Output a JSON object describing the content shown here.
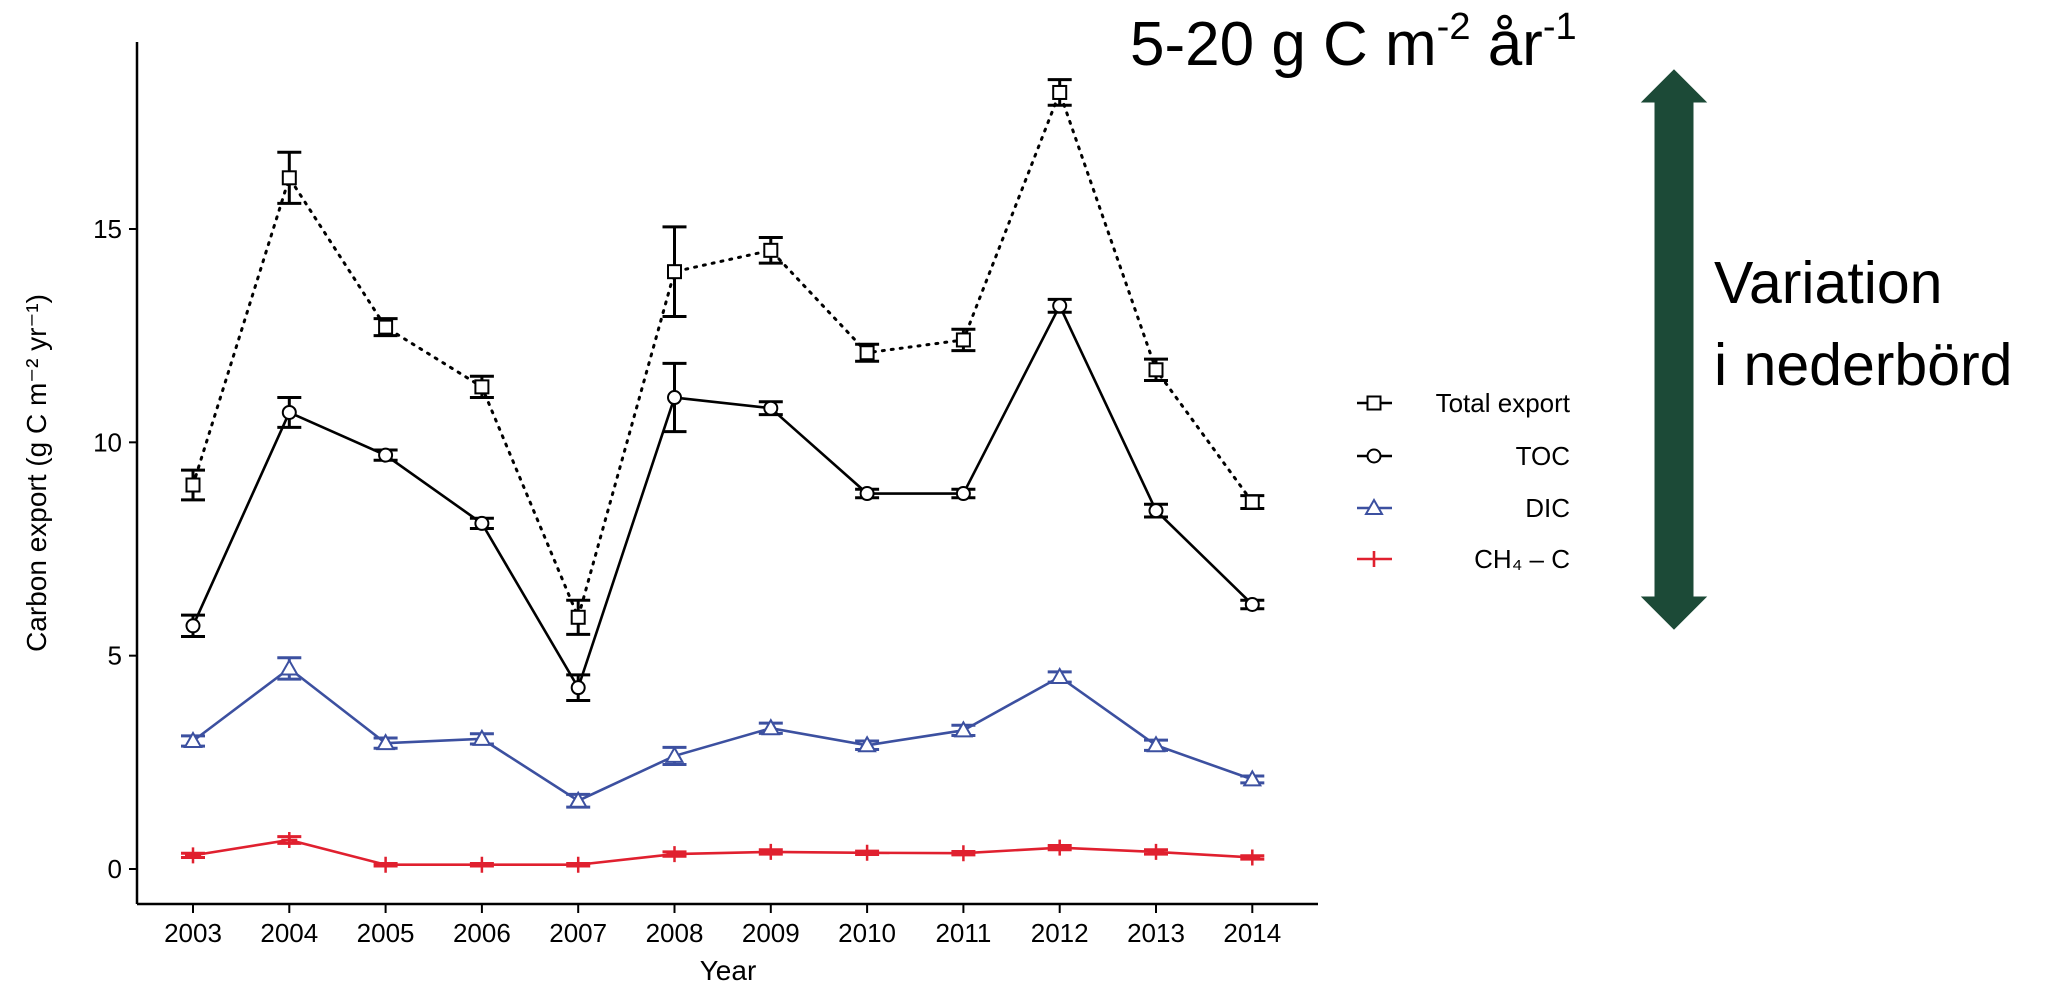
{
  "headline": {
    "base": "5-20 g C m",
    "exp1": "-2",
    "mid": " år",
    "exp2": "-1"
  },
  "annotation": {
    "line1": "Variation",
    "line2": "i nederbörd",
    "arrow_color": "#1c4a37"
  },
  "chart_data": {
    "type": "line",
    "xlabel": "Year",
    "ylabel": "Carbon export (g C m⁻² yr⁻¹)",
    "ylim": [
      -0.8,
      19.5
    ],
    "yticks": [
      0,
      5,
      10,
      15
    ],
    "x": [
      "2003",
      "2004",
      "2005",
      "2006",
      "2007",
      "2008",
      "2009",
      "2010",
      "2011",
      "2012",
      "2013",
      "2014"
    ],
    "legend_position": "right",
    "series": [
      {
        "name": "Total export",
        "marker": "square",
        "style": "dotted",
        "color": "#000000",
        "values": [
          9.0,
          16.2,
          12.7,
          11.3,
          5.9,
          14.0,
          14.5,
          12.1,
          12.4,
          18.2,
          11.7,
          8.6
        ],
        "errors": [
          0.35,
          0.6,
          0.2,
          0.25,
          0.4,
          1.05,
          0.3,
          0.2,
          0.25,
          0.3,
          0.25,
          0.15
        ]
      },
      {
        "name": "TOC",
        "marker": "circle",
        "style": "solid",
        "color": "#000000",
        "values": [
          5.7,
          10.7,
          9.7,
          8.1,
          4.25,
          11.05,
          10.8,
          8.8,
          8.8,
          13.2,
          8.4,
          6.2
        ],
        "errors": [
          0.25,
          0.35,
          0.12,
          0.12,
          0.3,
          0.8,
          0.15,
          0.1,
          0.1,
          0.15,
          0.15,
          0.1
        ]
      },
      {
        "name": "DIC",
        "marker": "triangle",
        "style": "solid",
        "color": "#3c50a0",
        "values": [
          3.0,
          4.7,
          2.95,
          3.05,
          1.6,
          2.65,
          3.3,
          2.9,
          3.25,
          4.5,
          2.9,
          2.1
        ],
        "errors": [
          0.12,
          0.25,
          0.12,
          0.12,
          0.15,
          0.2,
          0.12,
          0.1,
          0.12,
          0.12,
          0.12,
          0.08
        ]
      },
      {
        "name": "CH₄ – C",
        "marker": "plus",
        "style": "solid",
        "color": "#e0202f",
        "values": [
          0.32,
          0.68,
          0.1,
          0.1,
          0.1,
          0.35,
          0.4,
          0.38,
          0.37,
          0.5,
          0.4,
          0.27
        ],
        "errors": [
          0.05,
          0.08,
          0.03,
          0.03,
          0.03,
          0.05,
          0.05,
          0.04,
          0.04,
          0.05,
          0.05,
          0.04
        ]
      }
    ]
  }
}
